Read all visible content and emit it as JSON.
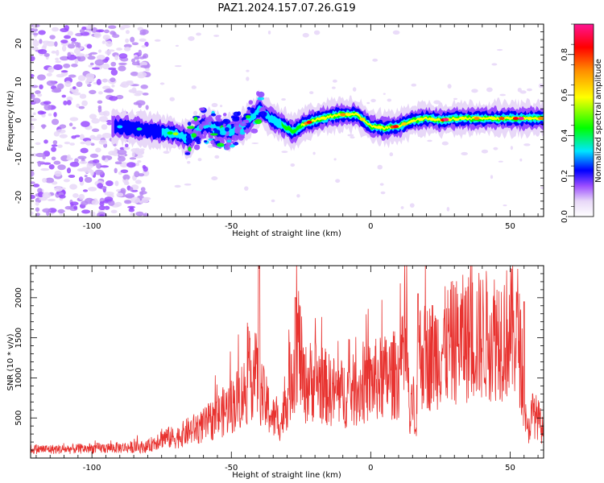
{
  "title": "PAZ1.2024.157.07.26.G19",
  "chart_data": [
    {
      "type": "heatmap",
      "xlabel": "Height of straight line (km)",
      "ylabel": "Frequency (Hz)",
      "xlim": [
        -122,
        62
      ],
      "ylim": [
        -25,
        25
      ],
      "xticks": [
        -100,
        -50,
        0,
        50
      ],
      "yticks": [
        -20,
        -10,
        0,
        10,
        20
      ],
      "colorbar": {
        "label": "Normalized spectral amplitude",
        "range": [
          0,
          0.95
        ],
        "ticks": [
          0.0,
          0.2,
          0.4,
          0.6,
          0.8
        ],
        "colormap": [
          "#ffffff",
          "#e8d8f8",
          "#9b4dff",
          "#0000ff",
          "#00e6ff",
          "#00ff00",
          "#ffff00",
          "#ff8c00",
          "#ff0000",
          "#ff1493"
        ]
      },
      "ridge": {
        "x": [
          -92,
          -80,
          -70,
          -65,
          -60,
          -55,
          -50,
          -45,
          -40,
          -36,
          -32,
          -28,
          -24,
          -20,
          -15,
          -10,
          -5,
          0,
          5,
          10,
          15,
          20,
          25,
          30,
          40,
          50,
          55,
          62
        ],
        "y": [
          -1.5,
          -2.5,
          -3.5,
          -5,
          -1,
          -2.5,
          -3,
          -1,
          3,
          0.5,
          -1,
          -3,
          -1,
          0,
          1,
          1.5,
          1.5,
          -1.5,
          -2,
          -1.5,
          0,
          0.5,
          0,
          0.5,
          0.5,
          0.5,
          0.5,
          0.5
        ]
      }
    },
    {
      "type": "line",
      "xlabel": "Height of straight line (km)",
      "ylabel": "SNR (10 * v/v)",
      "xlim": [
        -122,
        62
      ],
      "ylim": [
        0,
        2400
      ],
      "xticks": [
        -100,
        -50,
        0,
        50
      ],
      "yticks": [
        500,
        1000,
        1500,
        2000
      ],
      "line_color": "#e8322f",
      "series": [
        {
          "x": [
            -122,
            -110,
            -100,
            -90,
            -80,
            -75,
            -70,
            -65,
            -60,
            -55,
            -50,
            -46,
            -44,
            -42,
            -40,
            -38,
            -35,
            -32,
            -28,
            -26,
            -24,
            -20,
            -15,
            -10,
            -5,
            0,
            5,
            10,
            13,
            14,
            16,
            17,
            20,
            25,
            30,
            35,
            40,
            45,
            50,
            53,
            55,
            56,
            58,
            60,
            62
          ],
          "y": [
            110,
            110,
            120,
            130,
            140,
            260,
            250,
            340,
            400,
            520,
            650,
            800,
            900,
            1100,
            900,
            700,
            500,
            450,
            1100,
            1500,
            900,
            1000,
            850,
            800,
            850,
            950,
            1000,
            1050,
            1300,
            400,
            1000,
            1300,
            1250,
            1350,
            1450,
            1500,
            1520,
            1550,
            1560,
            1580,
            700,
            300,
            550,
            500,
            300
          ]
        }
      ]
    }
  ]
}
